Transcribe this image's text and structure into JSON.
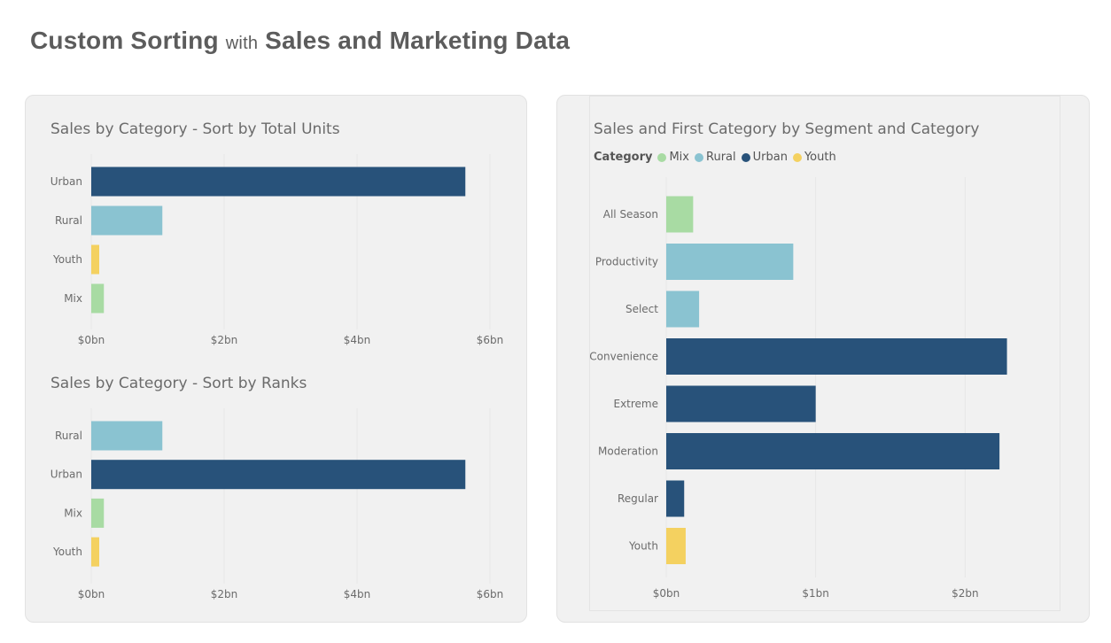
{
  "page": {
    "title_part1": "Custom Sorting",
    "title_with": "with",
    "title_part2": "Sales and Marketing Data"
  },
  "colors": {
    "Mix": "#a8dba3",
    "Rural": "#8ac3d1",
    "Urban": "#28527a",
    "Youth": "#f4d160",
    "text": "#6b6b6b",
    "grid": "#e6e6e6"
  },
  "legend": {
    "title": "Category",
    "items": [
      "Mix",
      "Rural",
      "Urban",
      "Youth"
    ]
  },
  "chart_data": [
    {
      "type": "bar",
      "orientation": "horizontal",
      "title": "Sales by Category - Sort by Total Units",
      "categories": [
        "Urban",
        "Rural",
        "Youth",
        "Mix"
      ],
      "values": [
        5.63,
        1.07,
        0.12,
        0.19
      ],
      "colors": [
        "Urban",
        "Rural",
        "Youth",
        "Mix"
      ],
      "xticks": [
        "$0bn",
        "$2bn",
        "$4bn",
        "$6bn"
      ],
      "xtick_values": [
        0,
        2,
        4,
        6
      ],
      "xlim": [
        0,
        6
      ],
      "grid": true
    },
    {
      "type": "bar",
      "orientation": "horizontal",
      "title": "Sales by Category - Sort by Ranks",
      "categories": [
        "Rural",
        "Urban",
        "Mix",
        "Youth"
      ],
      "values": [
        1.07,
        5.63,
        0.19,
        0.12
      ],
      "colors": [
        "Rural",
        "Urban",
        "Mix",
        "Youth"
      ],
      "xticks": [
        "$0bn",
        "$2bn",
        "$4bn",
        "$6bn"
      ],
      "xtick_values": [
        0,
        2,
        4,
        6
      ],
      "xlim": [
        0,
        6
      ],
      "grid": true
    },
    {
      "type": "bar",
      "orientation": "horizontal",
      "title": "Sales and First Category by Segment and Category",
      "categories": [
        "All Season",
        "Productivity",
        "Select",
        "Convenience",
        "Extreme",
        "Moderation",
        "Regular",
        "Youth"
      ],
      "values": [
        0.18,
        0.85,
        0.22,
        2.28,
        1.0,
        2.23,
        0.12,
        0.13
      ],
      "colors": [
        "Mix",
        "Rural",
        "Rural",
        "Urban",
        "Urban",
        "Urban",
        "Urban",
        "Youth"
      ],
      "xticks": [
        "$0bn",
        "$1bn",
        "$2bn"
      ],
      "xtick_values": [
        0,
        1,
        2
      ],
      "xlim": [
        0,
        2.33
      ],
      "grid": true,
      "legend_position": "top-left"
    }
  ]
}
